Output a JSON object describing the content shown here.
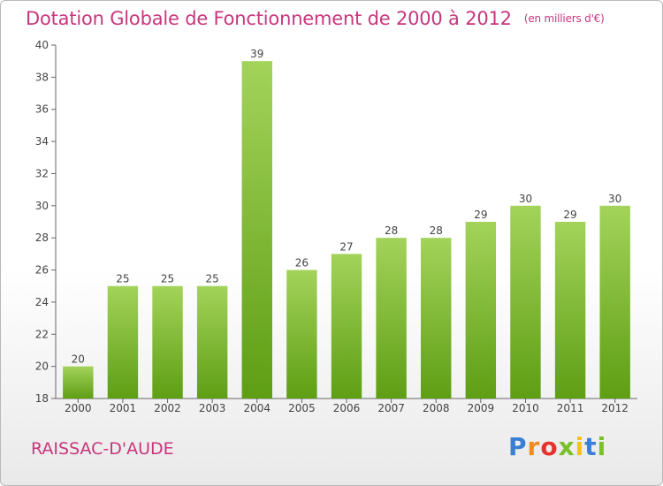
{
  "header": {
    "title": "Dotation Globale de Fonctionnement de 2000 à 2012",
    "unit": "(en milliers d'€)"
  },
  "footer": {
    "commune": "RAISSAC-D'AUDE",
    "logo_text": "Proxiti",
    "logo_icon": "proxiti-logo"
  },
  "chart_data": {
    "type": "bar",
    "title": "Dotation Globale de Fonctionnement de 2000 à 2012",
    "subtitle": "(en milliers d'€)",
    "xlabel": "",
    "ylabel": "",
    "categories": [
      "2000",
      "2001",
      "2002",
      "2003",
      "2004",
      "2005",
      "2006",
      "2007",
      "2008",
      "2009",
      "2010",
      "2011",
      "2012"
    ],
    "values": [
      20,
      25,
      25,
      25,
      39,
      26,
      27,
      28,
      28,
      29,
      30,
      29,
      30
    ],
    "data_labels": [
      "20",
      "25",
      "25",
      "25",
      "39",
      "26",
      "27",
      "28",
      "28",
      "29",
      "30",
      "29",
      "30"
    ],
    "ylim": [
      18,
      40
    ],
    "yticks": [
      18,
      20,
      22,
      24,
      26,
      28,
      30,
      32,
      34,
      36,
      38,
      40
    ],
    "grid": false,
    "legend": "none",
    "colors": {
      "bar_light": "#a3d35a",
      "bar_dark": "#5e9e14",
      "axis": "#666666",
      "title": "#c8367d"
    }
  }
}
